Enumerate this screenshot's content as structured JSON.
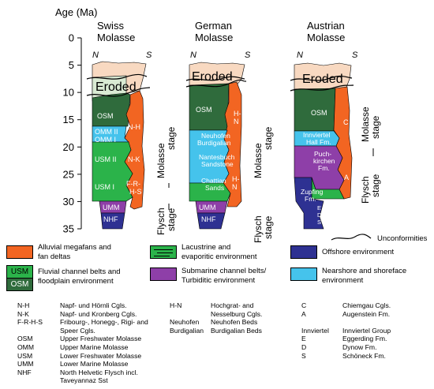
{
  "axis": {
    "title": "Age (Ma)",
    "ticks": [
      "0",
      "5",
      "10",
      "15",
      "20",
      "25",
      "30",
      "35"
    ]
  },
  "columns": {
    "swiss": {
      "title_1": "Swiss",
      "title_2": "Molasse",
      "left": "N",
      "right": "S"
    },
    "german": {
      "title_1": "German",
      "title_2": "Molasse",
      "left": "N",
      "right": "S"
    },
    "austrian": {
      "title_1": "Austrian",
      "title_2": "Molasse",
      "left": "N",
      "right": "S"
    }
  },
  "labels": {
    "eroded": "Eroded",
    "osm": "OSM",
    "omm2": "OMM II",
    "omm1": "OMM I",
    "usm2": "USM II",
    "usm1": "USM I",
    "umm": "UMM",
    "nhf": "NHF",
    "nh": "N-H",
    "nk": "N-K",
    "frhs_1": "F-R-",
    "frhs_2": "H-S",
    "hn_1": "H-",
    "hn_2": "N",
    "neuhofen": "Neuhofen",
    "burdigalian": "Burdigalian",
    "nantesbuch": "Nantesbuch",
    "sandstone": "Sandstone",
    "chattian": "Chattian",
    "sands": "Sands",
    "c": "C",
    "innviertel": "Innviertel",
    "hall_fm": "Hall Fm.",
    "puch_1": "Puch-",
    "puch_2": "kirchen",
    "puch_3": "Fm.",
    "a": "A",
    "zupfing_1": "Zupfing",
    "zupfing_2": "Fm.",
    "e": "E",
    "d": "D",
    "s": "S",
    "molasse_stage_1": "Molasse",
    "molasse_stage_2": "stage",
    "flysch_stage_1": "Flysch",
    "flysch_stage_2": "stage"
  },
  "colors": {
    "orange": "#F26522",
    "green": "#2BB34A",
    "darkgreen": "#2F6B3C",
    "light_green": "#D9EAD3",
    "cyan": "#45C3EC",
    "purple": "#8E3FA8",
    "navy": "#2E3192",
    "eroded": "#F8D9C1"
  },
  "legend": {
    "unconformities": "Unconformities",
    "items": [
      {
        "swatch": "",
        "color": "#F26522",
        "line1": "Alluvial megafans and",
        "line2": "fan deltas"
      },
      {
        "swatch": "",
        "color": "#2BB34A",
        "line1": "Lacustrine and",
        "line2": "evaporitic environment"
      },
      {
        "swatch": "",
        "color": "#2E3192",
        "line1": "Offshore environment",
        "line2": ""
      },
      {
        "swatch": "USM",
        "color": "#2BB34A",
        "line1": "Fluvial channel belts and",
        "line2": "floodplain environment"
      },
      {
        "swatch": "OSM",
        "color": "#2F6B3C",
        "line1": "",
        "line2": ""
      },
      {
        "swatch": "",
        "color": "#8E3FA8",
        "line1": "Submarine channel belts/",
        "line2": "Turbiditic environment"
      },
      {
        "swatch": "",
        "color": "#45C3EC",
        "line1": "Nearshore and shoreface",
        "line2": "environment"
      }
    ]
  },
  "abbreviations": {
    "col1": [
      {
        "k": "N-H",
        "v": "Napf- und Hörnli Cgls."
      },
      {
        "k": "N-K",
        "v": "Napf- und Kronberg Cgls."
      },
      {
        "k": "F-R-H-S",
        "v": "Fribourg-, Honegg-, Rigi- and"
      },
      {
        "k": "",
        "v": "Speer Cgls."
      },
      {
        "k": "OSM",
        "v": "Upper Freshwater Molasse"
      },
      {
        "k": "OMM",
        "v": "Upper Marine Molasse"
      },
      {
        "k": "USM",
        "v": "Lower Freshwater Molasse"
      },
      {
        "k": "UMM",
        "v": "Lower Marine Molasse"
      },
      {
        "k": "NHF",
        "v": "North Helvetic Flysch incl."
      },
      {
        "k": "",
        "v": "Taveyannaz Sst"
      }
    ],
    "col2": [
      {
        "k": "H-N",
        "v": "Hochgrat- and"
      },
      {
        "k": "",
        "v": "Nesselburg Cgls."
      },
      {
        "k": "Neuhofen",
        "v": "Neuhofen Beds"
      },
      {
        "k": "Burdigalian",
        "v": "Burdigalian Beds"
      }
    ],
    "col3": [
      {
        "k": "C",
        "v": "Chiemgau Cgls."
      },
      {
        "k": "A",
        "v": "Augenstein Fm."
      },
      {
        "k": "",
        "v": ""
      },
      {
        "k": "Innviertel",
        "v": "Innviertel Group"
      },
      {
        "k": "E",
        "v": "Eggerding Fm."
      },
      {
        "k": "D",
        "v": "Dynow Fm."
      },
      {
        "k": "S",
        "v": "Schöneck Fm."
      }
    ]
  }
}
